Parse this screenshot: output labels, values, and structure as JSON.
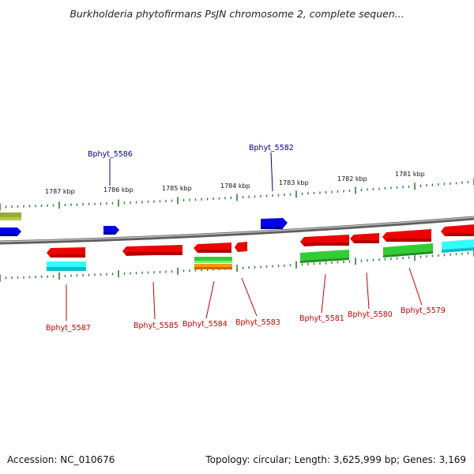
{
  "title": "Burkholderia phytofirmans PsJN chromosome 2, complete sequen...",
  "footer": {
    "accession": "Accession: NC_010676",
    "topology": "Topology: circular; Length: 3,625,999 bp; Genes: 3,169"
  },
  "colors": {
    "forward_gene": "#0000ee",
    "forward_label": "#00008b",
    "reverse_gene": "#ee0000",
    "reverse_label": "#cc0000",
    "green_feature": "#33cc33",
    "cyan_feature": "#33ffff",
    "orange_feature": "#ff9900",
    "olive_feature": "#99aa33",
    "backbone": "#888888",
    "tick": "#2e7d32"
  },
  "scale_labels": [
    "1787 kbp",
    "1786 kbp",
    "1785 kbp",
    "1784 kbp",
    "1783 kbp",
    "1782 kbp",
    "1781 kbp"
  ],
  "forward_gene_labels": [
    "Bphyt_5586",
    "Bphyt_5582"
  ],
  "reverse_gene_labels": [
    "Bphyt_5587",
    "Bphyt_5585",
    "Bphyt_5584",
    "Bphyt_5583",
    "Bphyt_5581",
    "Bphyt_5580",
    "Bphyt_5579"
  ]
}
